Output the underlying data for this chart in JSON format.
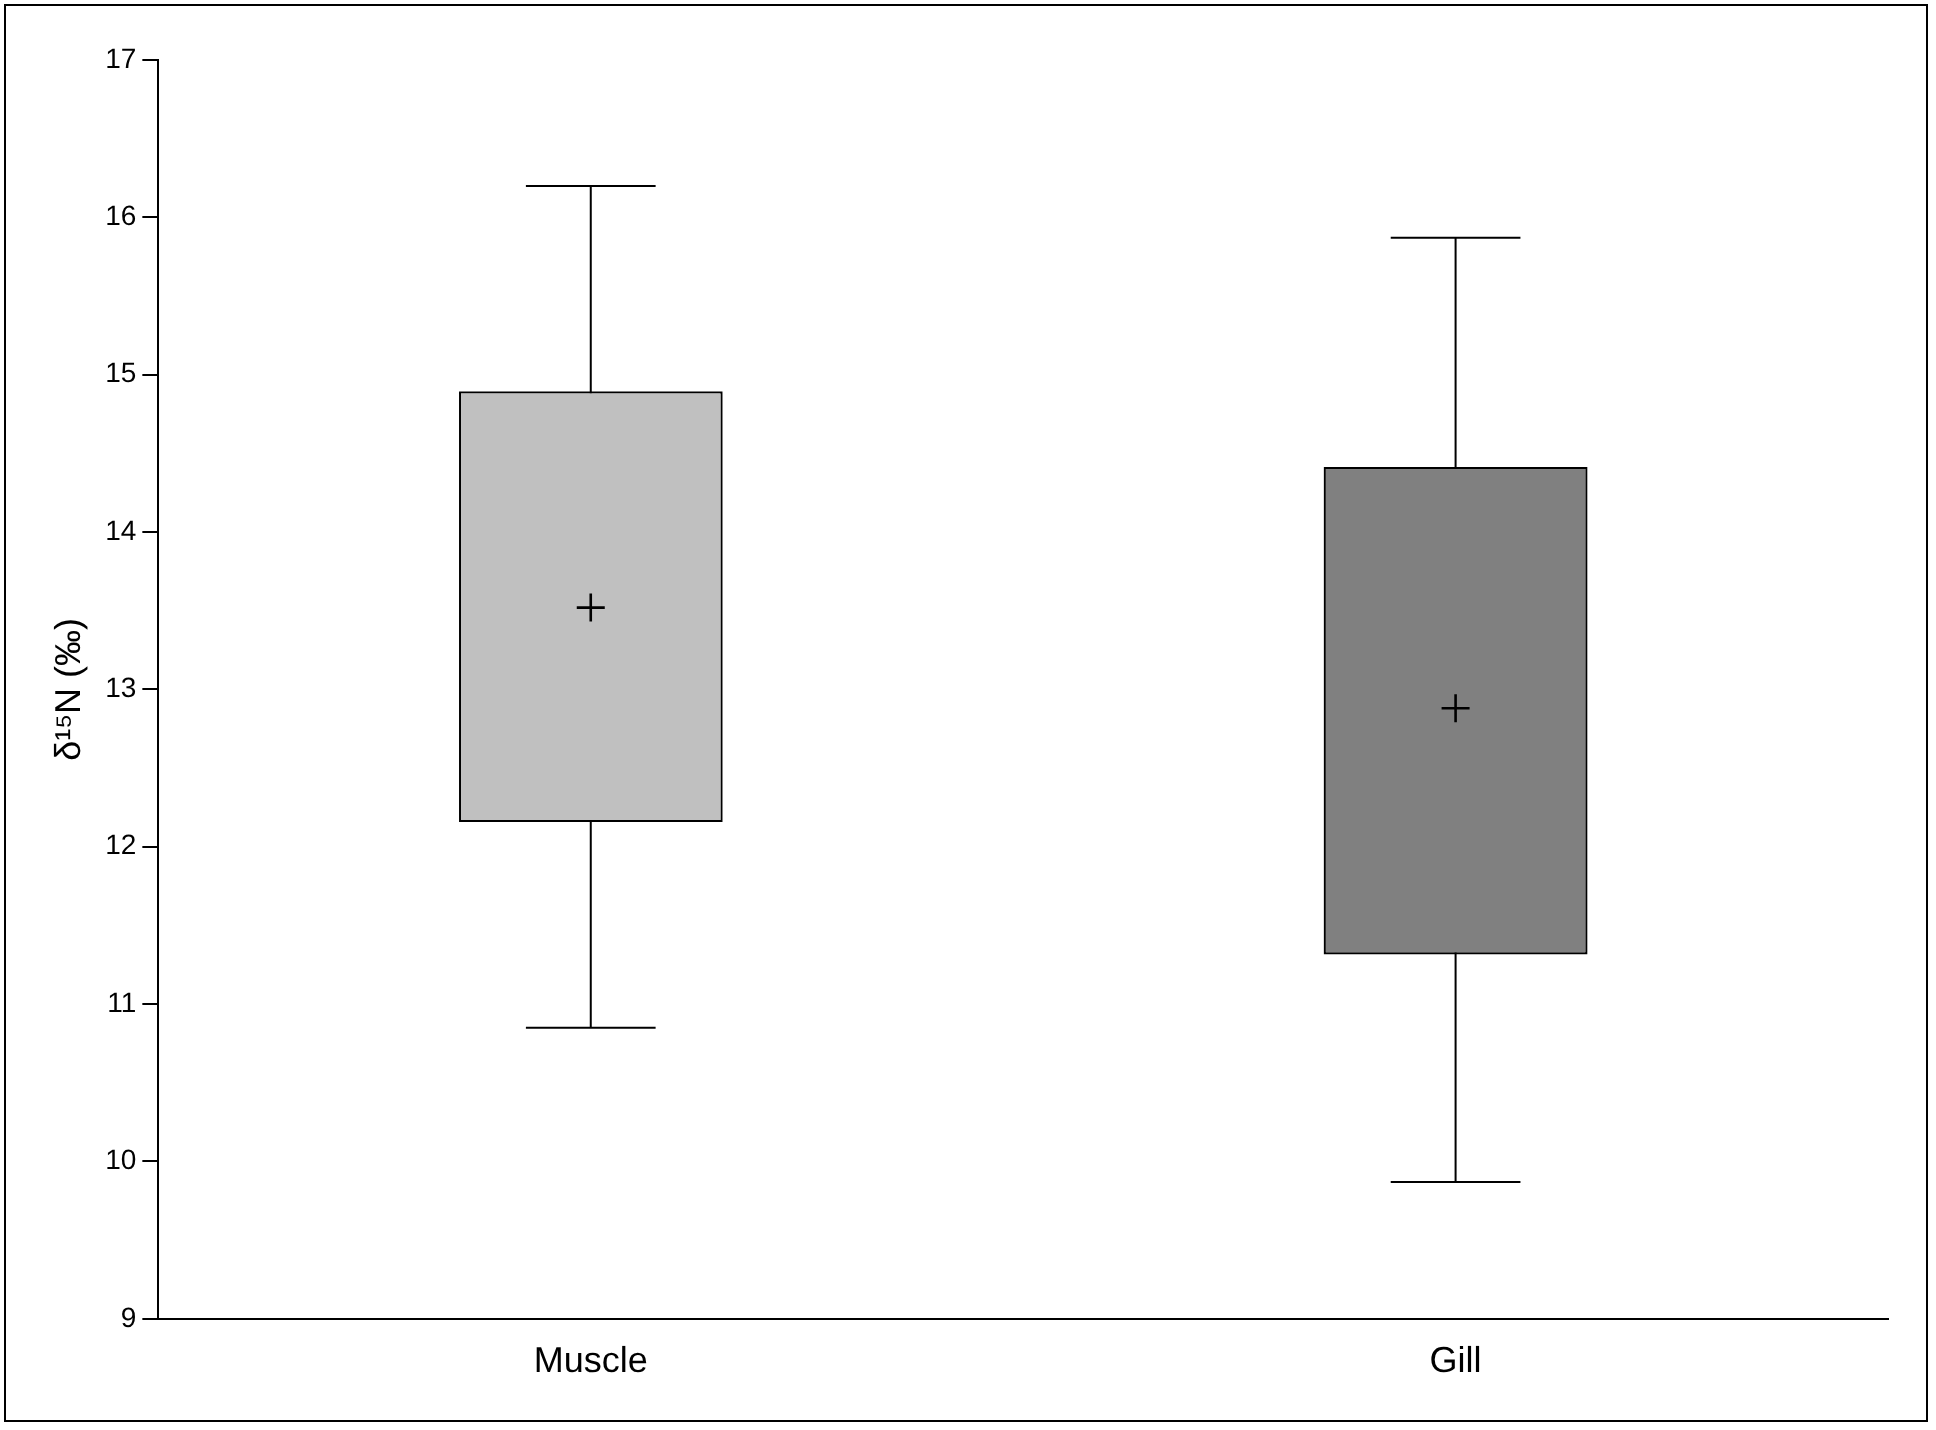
{
  "chart_data": {
    "type": "box",
    "ylabel": "δ¹⁵N (‰)",
    "categories": [
      "Muscle",
      "Gill"
    ],
    "colors": [
      "#c0c0c0",
      "#808080"
    ],
    "boxes": [
      {
        "low": 10.85,
        "q1": 12.17,
        "median": 13.52,
        "q3": 14.88,
        "high": 16.2
      },
      {
        "low": 9.87,
        "q1": 11.33,
        "median": 12.88,
        "q3": 14.4,
        "high": 15.87
      }
    ],
    "ylim": [
      9,
      17
    ],
    "yticks": [
      9,
      10,
      11,
      12,
      13,
      14,
      15,
      16,
      17
    ],
    "grid": false,
    "legend": false,
    "marker": "cross"
  }
}
